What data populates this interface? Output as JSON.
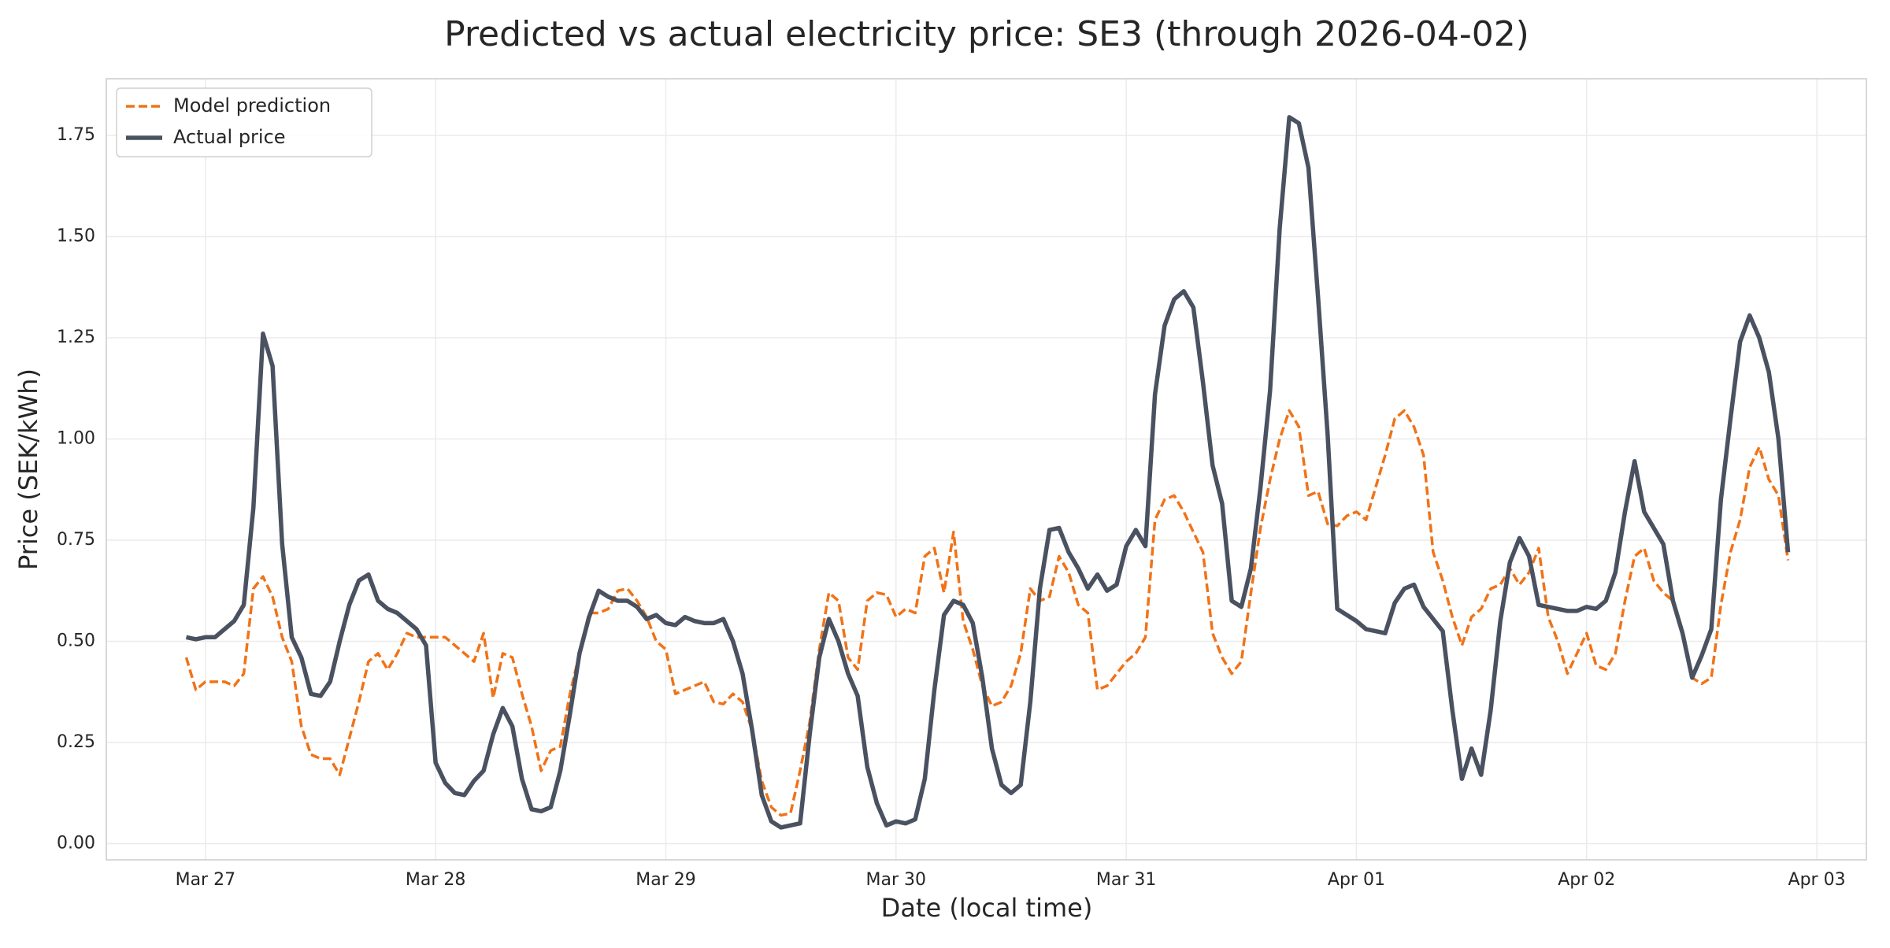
{
  "chart_data": {
    "type": "line",
    "title": "Predicted vs actual electricity price: SE3 (through 2026-04-02)",
    "xlabel": "Date (local time)",
    "ylabel": "Price (SEK/kWh)",
    "x": [
      "2026-03-26T22:00",
      "2026-03-26T23:00",
      "2026-03-27T00:00",
      "2026-03-27T01:00",
      "2026-03-27T02:00",
      "2026-03-27T03:00",
      "2026-03-27T04:00",
      "2026-03-27T05:00",
      "2026-03-27T06:00",
      "2026-03-27T07:00",
      "2026-03-27T08:00",
      "2026-03-27T09:00",
      "2026-03-27T10:00",
      "2026-03-27T11:00",
      "2026-03-27T12:00",
      "2026-03-27T13:00",
      "2026-03-27T14:00",
      "2026-03-27T15:00",
      "2026-03-27T16:00",
      "2026-03-27T17:00",
      "2026-03-27T18:00",
      "2026-03-27T19:00",
      "2026-03-27T20:00",
      "2026-03-27T21:00",
      "2026-03-27T22:00",
      "2026-03-27T23:00",
      "2026-03-28T00:00",
      "2026-03-28T01:00",
      "2026-03-28T02:00",
      "2026-03-28T03:00",
      "2026-03-28T04:00",
      "2026-03-28T05:00",
      "2026-03-28T06:00",
      "2026-03-28T07:00",
      "2026-03-28T08:00",
      "2026-03-28T09:00",
      "2026-03-28T10:00",
      "2026-03-28T11:00",
      "2026-03-28T12:00",
      "2026-03-28T13:00",
      "2026-03-28T14:00",
      "2026-03-28T15:00",
      "2026-03-28T16:00",
      "2026-03-28T17:00",
      "2026-03-28T18:00",
      "2026-03-28T19:00",
      "2026-03-28T20:00",
      "2026-03-28T21:00",
      "2026-03-28T22:00",
      "2026-03-28T23:00",
      "2026-03-29T00:00",
      "2026-03-29T01:00",
      "2026-03-29T02:00",
      "2026-03-29T03:00",
      "2026-03-29T04:00",
      "2026-03-29T05:00",
      "2026-03-29T06:00",
      "2026-03-29T07:00",
      "2026-03-29T08:00",
      "2026-03-29T09:00",
      "2026-03-29T10:00",
      "2026-03-29T11:00",
      "2026-03-29T12:00",
      "2026-03-29T13:00",
      "2026-03-29T14:00",
      "2026-03-29T15:00",
      "2026-03-29T16:00",
      "2026-03-29T17:00",
      "2026-03-29T18:00",
      "2026-03-29T19:00",
      "2026-03-29T20:00",
      "2026-03-29T21:00",
      "2026-03-29T22:00",
      "2026-03-29T23:00",
      "2026-03-30T00:00",
      "2026-03-30T01:00",
      "2026-03-30T02:00",
      "2026-03-30T03:00",
      "2026-03-30T04:00",
      "2026-03-30T05:00",
      "2026-03-30T06:00",
      "2026-03-30T07:00",
      "2026-03-30T08:00",
      "2026-03-30T09:00",
      "2026-03-30T10:00",
      "2026-03-30T11:00",
      "2026-03-30T12:00",
      "2026-03-30T13:00",
      "2026-03-30T14:00",
      "2026-03-30T15:00",
      "2026-03-30T16:00",
      "2026-03-30T17:00",
      "2026-03-30T18:00",
      "2026-03-30T19:00",
      "2026-03-30T20:00",
      "2026-03-30T21:00",
      "2026-03-30T22:00",
      "2026-03-30T23:00",
      "2026-03-31T00:00",
      "2026-03-31T01:00",
      "2026-03-31T02:00",
      "2026-03-31T03:00",
      "2026-03-31T04:00",
      "2026-03-31T05:00",
      "2026-03-31T06:00",
      "2026-03-31T07:00",
      "2026-03-31T08:00",
      "2026-03-31T09:00",
      "2026-03-31T10:00",
      "2026-03-31T11:00",
      "2026-03-31T12:00",
      "2026-03-31T13:00",
      "2026-03-31T14:00",
      "2026-03-31T15:00",
      "2026-03-31T16:00",
      "2026-03-31T17:00",
      "2026-03-31T18:00",
      "2026-03-31T19:00",
      "2026-03-31T20:00",
      "2026-03-31T21:00",
      "2026-03-31T22:00",
      "2026-03-31T23:00",
      "2026-04-01T00:00",
      "2026-04-01T01:00",
      "2026-04-01T02:00",
      "2026-04-01T03:00",
      "2026-04-01T04:00",
      "2026-04-01T05:00",
      "2026-04-01T06:00",
      "2026-04-01T07:00",
      "2026-04-01T08:00",
      "2026-04-01T09:00",
      "2026-04-01T10:00",
      "2026-04-01T11:00",
      "2026-04-01T12:00",
      "2026-04-01T13:00",
      "2026-04-01T14:00",
      "2026-04-01T15:00",
      "2026-04-01T16:00",
      "2026-04-01T17:00",
      "2026-04-01T18:00",
      "2026-04-01T19:00",
      "2026-04-01T20:00",
      "2026-04-01T21:00",
      "2026-04-01T22:00",
      "2026-04-01T23:00",
      "2026-04-02T00:00",
      "2026-04-02T01:00",
      "2026-04-02T02:00",
      "2026-04-02T03:00",
      "2026-04-02T04:00",
      "2026-04-02T05:00",
      "2026-04-02T06:00",
      "2026-04-02T07:00",
      "2026-04-02T08:00",
      "2026-04-02T09:00",
      "2026-04-02T10:00",
      "2026-04-02T11:00",
      "2026-04-02T12:00",
      "2026-04-02T13:00",
      "2026-04-02T14:00",
      "2026-04-02T15:00",
      "2026-04-02T16:00",
      "2026-04-02T17:00",
      "2026-04-02T18:00",
      "2026-04-02T19:00",
      "2026-04-02T20:00",
      "2026-04-02T21:00"
    ],
    "series": [
      {
        "name": "Model prediction",
        "color": "#f07318",
        "dash": true,
        "values": [
          0.46,
          0.38,
          0.4,
          0.4,
          0.4,
          0.39,
          0.42,
          0.63,
          0.66,
          0.61,
          0.51,
          0.45,
          0.29,
          0.22,
          0.21,
          0.21,
          0.17,
          0.26,
          0.35,
          0.45,
          0.47,
          0.43,
          0.47,
          0.52,
          0.51,
          0.51,
          0.51,
          0.51,
          0.49,
          0.47,
          0.45,
          0.52,
          0.36,
          0.47,
          0.46,
          0.37,
          0.29,
          0.18,
          0.23,
          0.24,
          0.37,
          0.47,
          0.57,
          0.57,
          0.58,
          0.625,
          0.63,
          0.6,
          0.56,
          0.5,
          0.48,
          0.37,
          0.38,
          0.39,
          0.4,
          0.35,
          0.345,
          0.37,
          0.35,
          0.28,
          0.155,
          0.09,
          0.07,
          0.075,
          0.18,
          0.3,
          0.48,
          0.62,
          0.6,
          0.46,
          0.43,
          0.6,
          0.62,
          0.615,
          0.56,
          0.58,
          0.57,
          0.71,
          0.73,
          0.62,
          0.77,
          0.55,
          0.48,
          0.39,
          0.34,
          0.35,
          0.39,
          0.47,
          0.63,
          0.6,
          0.61,
          0.71,
          0.67,
          0.59,
          0.57,
          0.38,
          0.39,
          0.42,
          0.45,
          0.47,
          0.51,
          0.8,
          0.85,
          0.86,
          0.82,
          0.77,
          0.72,
          0.52,
          0.46,
          0.42,
          0.45,
          0.62,
          0.78,
          0.9,
          1.0,
          1.07,
          1.03,
          0.86,
          0.87,
          0.79,
          0.785,
          0.81,
          0.82,
          0.8,
          0.88,
          0.96,
          1.05,
          1.07,
          1.03,
          0.96,
          0.72,
          0.65,
          0.56,
          0.49,
          0.56,
          0.58,
          0.63,
          0.64,
          0.68,
          0.64,
          0.67,
          0.73,
          0.56,
          0.5,
          0.42,
          0.47,
          0.52,
          0.44,
          0.43,
          0.47,
          0.6,
          0.71,
          0.73,
          0.65,
          0.62,
          0.6,
          0.52,
          0.41,
          0.395,
          0.41,
          0.59,
          0.72,
          0.8,
          0.93,
          0.98,
          0.9,
          0.86,
          0.7
        ]
      },
      {
        "name": "Actual price",
        "color": "#4a5160",
        "dash": false,
        "values": [
          0.51,
          0.505,
          0.51,
          0.51,
          0.53,
          0.55,
          0.59,
          0.83,
          1.26,
          1.18,
          0.74,
          0.51,
          0.46,
          0.37,
          0.365,
          0.4,
          0.5,
          0.59,
          0.65,
          0.665,
          0.6,
          0.58,
          0.57,
          0.55,
          0.53,
          0.49,
          0.2,
          0.15,
          0.125,
          0.12,
          0.155,
          0.18,
          0.27,
          0.335,
          0.29,
          0.16,
          0.085,
          0.08,
          0.09,
          0.18,
          0.32,
          0.47,
          0.56,
          0.625,
          0.61,
          0.6,
          0.6,
          0.585,
          0.555,
          0.565,
          0.545,
          0.54,
          0.56,
          0.55,
          0.545,
          0.545,
          0.555,
          0.5,
          0.42,
          0.28,
          0.12,
          0.055,
          0.04,
          0.045,
          0.05,
          0.27,
          0.46,
          0.555,
          0.5,
          0.42,
          0.365,
          0.19,
          0.1,
          0.045,
          0.055,
          0.05,
          0.06,
          0.16,
          0.38,
          0.565,
          0.6,
          0.59,
          0.545,
          0.41,
          0.235,
          0.145,
          0.125,
          0.145,
          0.35,
          0.63,
          0.775,
          0.78,
          0.72,
          0.68,
          0.63,
          0.665,
          0.625,
          0.64,
          0.735,
          0.775,
          0.735,
          1.11,
          1.28,
          1.345,
          1.365,
          1.325,
          1.14,
          0.935,
          0.84,
          0.6,
          0.585,
          0.68,
          0.88,
          1.12,
          1.52,
          1.795,
          1.78,
          1.67,
          1.35,
          1.01,
          0.58,
          0.565,
          0.55,
          0.53,
          0.525,
          0.52,
          0.595,
          0.63,
          0.64,
          0.585,
          0.555,
          0.525,
          0.33,
          0.16,
          0.235,
          0.17,
          0.33,
          0.55,
          0.695,
          0.755,
          0.71,
          0.59,
          0.585,
          0.58,
          0.575,
          0.575,
          0.585,
          0.58,
          0.6,
          0.67,
          0.82,
          0.945,
          0.82,
          0.78,
          0.74,
          0.6,
          0.52,
          0.41,
          0.465,
          0.53,
          0.85,
          1.05,
          1.24,
          1.305,
          1.25,
          1.165,
          1.0,
          0.72
        ]
      }
    ],
    "xlim": [
      "2026-03-26T13:40",
      "2026-04-03T05:10"
    ],
    "xticks": [
      {
        "value": "2026-03-27T00:00",
        "label": "Mar 27"
      },
      {
        "value": "2026-03-28T00:00",
        "label": "Mar 28"
      },
      {
        "value": "2026-03-29T00:00",
        "label": "Mar 29"
      },
      {
        "value": "2026-03-30T00:00",
        "label": "Mar 30"
      },
      {
        "value": "2026-03-31T00:00",
        "label": "Mar 31"
      },
      {
        "value": "2026-04-01T00:00",
        "label": "Apr 01"
      },
      {
        "value": "2026-04-02T00:00",
        "label": "Apr 02"
      },
      {
        "value": "2026-04-03T00:00",
        "label": "Apr 03"
      }
    ],
    "ylim": [
      -0.04,
      1.89
    ],
    "yticks": [
      {
        "value": 0,
        "label": "0.00"
      },
      {
        "value": 0.25,
        "label": "0.25"
      },
      {
        "value": 0.5,
        "label": "0.50"
      },
      {
        "value": 0.75,
        "label": "0.75"
      },
      {
        "value": 1.0,
        "label": "1.00"
      },
      {
        "value": 1.25,
        "label": "1.25"
      },
      {
        "value": 1.5,
        "label": "1.50"
      },
      {
        "value": 1.75,
        "label": "1.75"
      }
    ],
    "grid": true,
    "legend": "upper left"
  }
}
